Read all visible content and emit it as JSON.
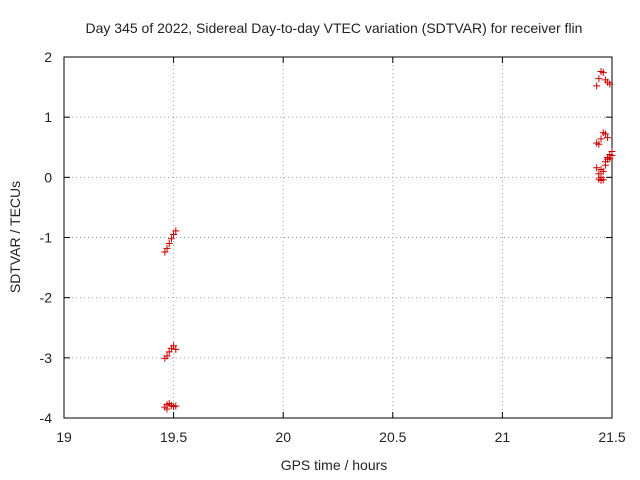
{
  "chart_data": {
    "type": "scatter",
    "title": "Day 345 of 2022, Sidereal Day-to-day VTEC variation (SDTVAR) for receiver flin",
    "xlabel": "GPS time / hours",
    "ylabel": "SDTVAR / TECUs",
    "xlim": [
      19,
      21.5
    ],
    "ylim": [
      -4,
      2
    ],
    "xticks": [
      19,
      19.5,
      20,
      20.5,
      21,
      21.5
    ],
    "xtick_labels": [
      "19",
      "19.5",
      "20",
      "20.5",
      "21",
      "21.5"
    ],
    "yticks": [
      -4,
      -3,
      -2,
      -1,
      0,
      1,
      2
    ],
    "ytick_labels": [
      "-4",
      "-3",
      "-2",
      "-1",
      "0",
      "1",
      "2"
    ],
    "grid": true,
    "marker": "plus",
    "color": "#cc0000",
    "x": [
      19.46,
      19.47,
      19.48,
      19.49,
      19.5,
      19.51,
      19.46,
      19.47,
      19.48,
      19.49,
      19.5,
      19.51,
      19.46,
      19.47,
      19.48,
      19.49,
      19.5,
      19.51,
      19.47,
      21.43,
      21.44,
      21.45,
      21.46,
      21.47,
      21.48,
      21.49,
      21.43,
      21.44,
      21.45,
      21.46,
      21.47,
      21.48,
      21.43,
      21.44,
      21.45,
      21.46,
      21.47,
      21.48,
      21.49,
      21.5,
      21.44,
      21.45,
      21.46,
      21.47,
      21.48,
      21.49,
      21.5,
      21.45
    ],
    "y": [
      -1.24,
      -1.18,
      -1.1,
      -1.02,
      -0.95,
      -0.89,
      -3.01,
      -2.97,
      -2.9,
      -2.84,
      -2.8,
      -2.86,
      -3.82,
      -3.78,
      -3.76,
      -3.79,
      -3.81,
      -3.8,
      -3.85,
      1.52,
      1.64,
      1.76,
      1.74,
      1.62,
      1.58,
      1.55,
      0.57,
      0.55,
      0.64,
      0.74,
      0.72,
      0.66,
      0.16,
      0.06,
      0.0,
      -0.04,
      0.2,
      0.3,
      0.38,
      0.43,
      -0.03,
      -0.05,
      0.1,
      0.26,
      0.33,
      0.31,
      0.36,
      0.13
    ]
  }
}
